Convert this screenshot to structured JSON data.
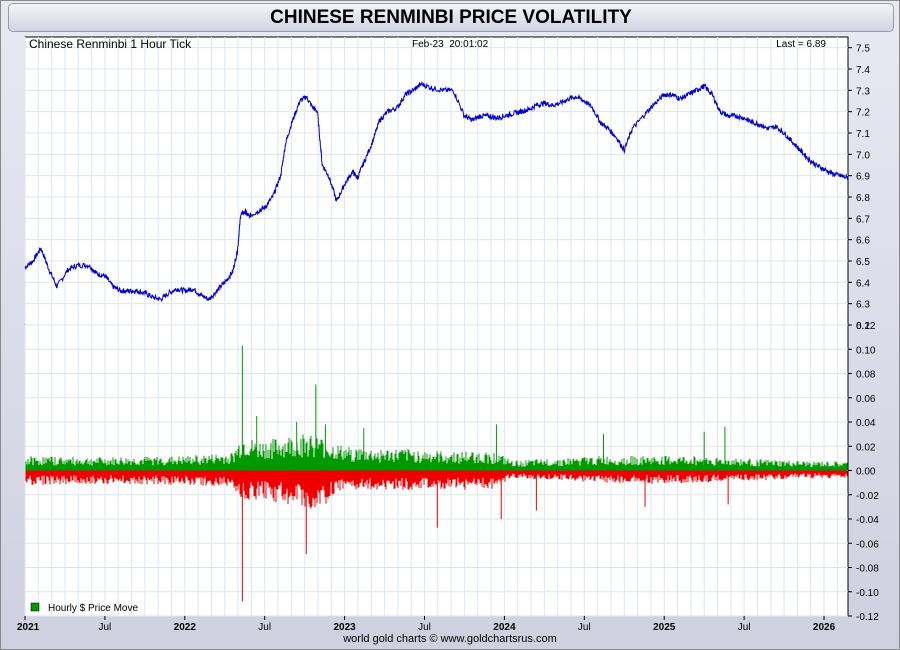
{
  "title": "CHINESE RENMINBI PRICE VOLATILITY",
  "credit": "world gold charts © www.goldchartsrus.com",
  "chart_data": [
    {
      "type": "line",
      "label": "Chinese Renminbi 1 Hour Tick",
      "timestamp": "Feb-23  20:01:02",
      "last_label": "Last = 6.89",
      "color": "#0000cc",
      "ylim": [
        6.2,
        7.55
      ],
      "yticks": [
        "7.5",
        "7.4",
        "7.3",
        "7.2",
        "7.1",
        "7.0",
        "6.9",
        "6.8",
        "6.7",
        "6.6",
        "6.5",
        "6.4",
        "6.3",
        "6.2"
      ],
      "x_unit": "year",
      "xlim": [
        2021.0,
        2026.15
      ],
      "x": [
        2021.0,
        2021.05,
        2021.1,
        2021.15,
        2021.2,
        2021.27,
        2021.33,
        2021.4,
        2021.45,
        2021.5,
        2021.55,
        2021.6,
        2021.65,
        2021.7,
        2021.75,
        2021.8,
        2021.85,
        2021.9,
        2021.95,
        2022.0,
        2022.05,
        2022.1,
        2022.15,
        2022.2,
        2022.25,
        2022.3,
        2022.33,
        2022.35,
        2022.38,
        2022.4,
        2022.45,
        2022.5,
        2022.55,
        2022.6,
        2022.63,
        2022.67,
        2022.72,
        2022.76,
        2022.8,
        2022.83,
        2022.86,
        2022.9,
        2022.95,
        2023.0,
        2023.05,
        2023.08,
        2023.12,
        2023.17,
        2023.22,
        2023.27,
        2023.33,
        2023.38,
        2023.43,
        2023.48,
        2023.55,
        2023.62,
        2023.68,
        2023.75,
        2023.8,
        2023.85,
        2023.9,
        2023.95,
        2024.0,
        2024.05,
        2024.1,
        2024.15,
        2024.2,
        2024.25,
        2024.3,
        2024.35,
        2024.4,
        2024.45,
        2024.5,
        2024.55,
        2024.6,
        2024.65,
        2024.7,
        2024.75,
        2024.8,
        2024.87,
        2024.93,
        2025.0,
        2025.05,
        2025.1,
        2025.15,
        2025.2,
        2025.25,
        2025.3,
        2025.35,
        2025.4,
        2025.45,
        2025.5,
        2025.55,
        2025.6,
        2025.65,
        2025.7,
        2025.75,
        2025.8,
        2025.85,
        2025.9,
        2025.95,
        2026.0,
        2026.05,
        2026.1,
        2026.15
      ],
      "y": [
        6.47,
        6.5,
        6.56,
        6.46,
        6.38,
        6.46,
        6.48,
        6.48,
        6.44,
        6.43,
        6.38,
        6.36,
        6.36,
        6.36,
        6.35,
        6.33,
        6.32,
        6.35,
        6.37,
        6.36,
        6.37,
        6.34,
        6.32,
        6.36,
        6.4,
        6.45,
        6.55,
        6.72,
        6.73,
        6.71,
        6.73,
        6.75,
        6.8,
        6.9,
        7.05,
        7.15,
        7.25,
        7.27,
        7.22,
        7.2,
        6.95,
        6.9,
        6.78,
        6.86,
        6.92,
        6.89,
        6.96,
        7.05,
        7.16,
        7.2,
        7.22,
        7.28,
        7.3,
        7.33,
        7.31,
        7.3,
        7.3,
        7.18,
        7.16,
        7.18,
        7.18,
        7.17,
        7.18,
        7.19,
        7.2,
        7.21,
        7.23,
        7.24,
        7.23,
        7.24,
        7.26,
        7.27,
        7.25,
        7.22,
        7.15,
        7.12,
        7.08,
        7.02,
        7.12,
        7.18,
        7.23,
        7.28,
        7.28,
        7.26,
        7.28,
        7.3,
        7.32,
        7.28,
        7.2,
        7.18,
        7.18,
        7.17,
        7.15,
        7.14,
        7.12,
        7.13,
        7.1,
        7.06,
        7.02,
        6.98,
        6.95,
        6.93,
        6.91,
        6.9,
        6.89
      ]
    },
    {
      "type": "bar",
      "legend": "Hourly $ Price Move",
      "pos_color": "#009900",
      "neg_color": "#ee0000",
      "ylim": [
        -0.12,
        0.12
      ],
      "yticks": [
        "0.12",
        "0.10",
        "0.08",
        "0.06",
        "0.04",
        "0.02",
        "0.00",
        "-0.02",
        "-0.04",
        "-0.06",
        "-0.08",
        "-0.10",
        "-0.12"
      ],
      "x": [
        2021.0,
        2021.5,
        2022.0,
        2022.3,
        2022.36,
        2022.45,
        2022.55,
        2022.7,
        2022.8,
        2022.9,
        2023.0,
        2023.2,
        2023.4,
        2023.6,
        2023.8,
        2023.95,
        2024.05,
        2024.3,
        2024.6,
        2024.9,
        2025.2,
        2025.5,
        2025.8,
        2026.15
      ],
      "pos_envelope": [
        0.012,
        0.011,
        0.012,
        0.015,
        0.03,
        0.024,
        0.026,
        0.03,
        0.032,
        0.024,
        0.02,
        0.018,
        0.018,
        0.016,
        0.016,
        0.015,
        0.008,
        0.01,
        0.012,
        0.012,
        0.012,
        0.01,
        0.008,
        0.007
      ],
      "neg_envelope": [
        -0.012,
        -0.011,
        -0.012,
        -0.014,
        -0.025,
        -0.024,
        -0.026,
        -0.03,
        -0.034,
        -0.026,
        -0.018,
        -0.016,
        -0.016,
        -0.016,
        -0.016,
        -0.015,
        -0.007,
        -0.008,
        -0.01,
        -0.011,
        -0.01,
        -0.009,
        -0.007,
        -0.006
      ],
      "spikes": [
        {
          "x": 2022.36,
          "value": 0.103
        },
        {
          "x": 2022.36,
          "value": -0.108
        },
        {
          "x": 2022.76,
          "value": -0.069
        },
        {
          "x": 2022.82,
          "value": 0.071
        },
        {
          "x": 2022.45,
          "value": 0.045
        },
        {
          "x": 2022.7,
          "value": 0.04
        },
        {
          "x": 2022.88,
          "value": 0.038
        },
        {
          "x": 2023.12,
          "value": 0.035
        },
        {
          "x": 2023.58,
          "value": -0.047
        },
        {
          "x": 2023.95,
          "value": 0.038
        },
        {
          "x": 2023.98,
          "value": -0.04
        },
        {
          "x": 2024.2,
          "value": -0.033
        },
        {
          "x": 2024.62,
          "value": 0.03
        },
        {
          "x": 2025.25,
          "value": 0.032
        },
        {
          "x": 2025.38,
          "value": 0.036
        },
        {
          "x": 2025.4,
          "value": -0.028
        },
        {
          "x": 2024.88,
          "value": -0.03
        }
      ]
    }
  ],
  "x_axis": {
    "ticks": [
      {
        "x": 2021.0,
        "label": "2021",
        "major": true
      },
      {
        "x": 2021.5,
        "label": "Jul",
        "major": false
      },
      {
        "x": 2022.0,
        "label": "2022",
        "major": true
      },
      {
        "x": 2022.5,
        "label": "Jul",
        "major": false
      },
      {
        "x": 2023.0,
        "label": "2023",
        "major": true
      },
      {
        "x": 2023.5,
        "label": "Jul",
        "major": false
      },
      {
        "x": 2024.0,
        "label": "2024",
        "major": true
      },
      {
        "x": 2024.5,
        "label": "Jul",
        "major": false
      },
      {
        "x": 2025.0,
        "label": "2025",
        "major": true
      },
      {
        "x": 2025.5,
        "label": "Jul",
        "major": false
      },
      {
        "x": 2026.0,
        "label": "2026",
        "major": true
      }
    ]
  }
}
